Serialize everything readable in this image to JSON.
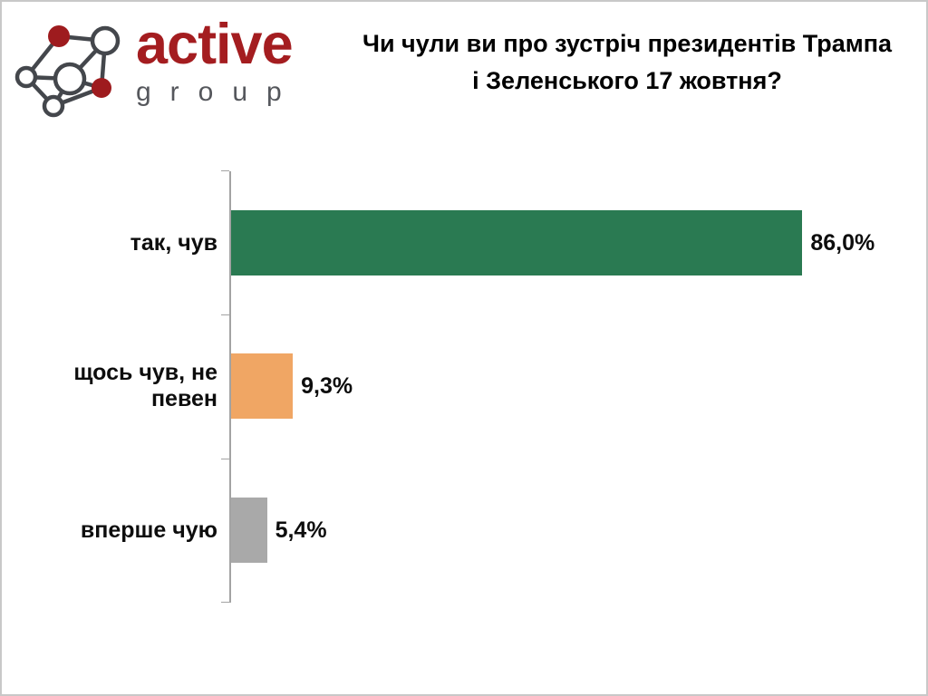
{
  "logo": {
    "brand": "active",
    "sub": "group",
    "brand_color": "#a41d20",
    "sub_color": "#55575c",
    "node_fill_color": "#9e1b1e",
    "node_line_color": "#44474c"
  },
  "title": {
    "text": "Чи чули ви про зустріч президентів Трампа і Зеленського 17 жовтня?"
  },
  "chart_data": {
    "type": "bar",
    "orientation": "horizontal",
    "title": "Чи чули ви про зустріч президентів Трампа і Зеленського 17 жовтня?",
    "categories": [
      "так, чув",
      "щось чув, не певен",
      "вперше чую"
    ],
    "values": [
      86.0,
      9.3,
      5.4
    ],
    "value_labels": [
      "86,0%",
      "9,3%",
      "5,4%"
    ],
    "bar_colors": [
      "#2a7a52",
      "#f0a664",
      "#a9a9a9"
    ],
    "xlim": [
      0,
      100
    ],
    "xlabel": "",
    "ylabel": "",
    "grid": false,
    "legend": false,
    "axis_color": "#a3a3a3",
    "data_labels_position": "outside-end"
  }
}
